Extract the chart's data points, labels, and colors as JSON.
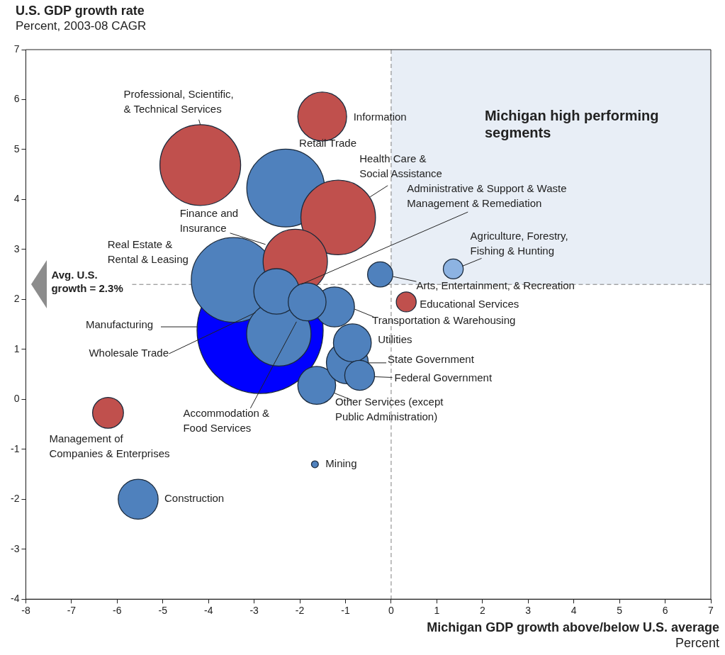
{
  "chart_data": {
    "type": "bubble",
    "title": "U.S. GDP growth rate",
    "subtitle": "Percent, 2003-08 CAGR",
    "xlabel": "Michigan GDP growth above/below U.S. average\nPercent",
    "xlim": [
      -8,
      7
    ],
    "xticks": [
      -8,
      -7,
      -6,
      -5,
      -4,
      -3,
      -2,
      -1,
      0,
      1,
      2,
      3,
      4,
      5,
      6,
      7
    ],
    "ylim": [
      -4,
      7
    ],
    "yticks": [
      -4,
      -3,
      -2,
      -1,
      0,
      1,
      2,
      3,
      4,
      5,
      6,
      7
    ],
    "grid": false,
    "ref_lines": [
      {
        "axis": "y",
        "value": 2.3,
        "label": "Avg. U.S. growth = 2.3%",
        "color": "#7f7f7f",
        "line_style": "dashed"
      },
      {
        "axis": "x",
        "value": 0,
        "color": "#7f7f7f",
        "line_style": "dashed"
      }
    ],
    "bands": [
      {
        "axis": "x",
        "from": 0,
        "to": 7,
        "label": "Michigan high performing segments",
        "color": "#e8eef6"
      }
    ],
    "series": [
      {
        "name": "Professional, Scientific, & Technical Services",
        "color": "#c0504d",
        "x": [
          -4.18
        ],
        "values": [
          4.69
        ],
        "sizes": [
          0.41
        ]
      },
      {
        "name": "Information",
        "color": "#c0504d",
        "x": [
          -1.51
        ],
        "values": [
          5.66
        ],
        "sizes": [
          0.15
        ]
      },
      {
        "name": "Retail Trade",
        "color": "#4f81bd",
        "x": [
          -2.31
        ],
        "values": [
          4.23
        ],
        "sizes": [
          0.38
        ]
      },
      {
        "name": "Health Care & Social Assistance",
        "color": "#c0504d",
        "x": [
          -1.16
        ],
        "values": [
          3.64
        ],
        "sizes": [
          0.35
        ]
      },
      {
        "name": "Manufacturing",
        "color": "#0000ff",
        "x": [
          -2.87
        ],
        "values": [
          1.38
        ],
        "sizes": [
          1
        ]
      },
      {
        "name": "Real Estate & Rental & Leasing",
        "color": "#4f81bd",
        "x": [
          -3.45
        ],
        "values": [
          2.39
        ],
        "sizes": [
          0.45
        ]
      },
      {
        "name": "Finance and Insurance",
        "color": "#c0504d",
        "x": [
          -2.1
        ],
        "values": [
          2.76
        ],
        "sizes": [
          0.26
        ]
      },
      {
        "name": "Wholesale Trade",
        "color": "#4f81bd",
        "x": [
          -2.46
        ],
        "values": [
          1.31
        ],
        "sizes": [
          0.26
        ]
      },
      {
        "name": "Administrative & Support & Waste Management & Remediation",
        "color": "#4f81bd",
        "x": [
          -2.51
        ],
        "values": [
          2.16
        ],
        "sizes": [
          0.13
        ]
      },
      {
        "name": "Transportation & Warehousing",
        "color": "#4f81bd",
        "x": [
          -1.24
        ],
        "values": [
          1.85
        ],
        "sizes": [
          0.1
        ]
      },
      {
        "name": "Accommodation & Food Services",
        "color": "#4f81bd",
        "x": [
          -1.84
        ],
        "values": [
          1.95
        ],
        "sizes": [
          0.09
        ]
      },
      {
        "name": "Arts, Entertainment, & Recreation",
        "color": "#4f81bd",
        "x": [
          -0.24
        ],
        "values": [
          2.5
        ],
        "sizes": [
          0.04
        ]
      },
      {
        "name": "Agriculture, Forestry, Fishing & Hunting",
        "color": "#8db3e2",
        "x": [
          1.36
        ],
        "values": [
          2.61
        ],
        "sizes": [
          0.025
        ]
      },
      {
        "name": "Educational Services",
        "color": "#c0504d",
        "x": [
          0.33
        ],
        "values": [
          1.95
        ],
        "sizes": [
          0.025
        ]
      },
      {
        "name": "Other Services (except Public Administration)",
        "color": "#4f81bd",
        "x": [
          -1.63
        ],
        "values": [
          0.28
        ],
        "sizes": [
          0.09
        ]
      },
      {
        "name": "State Government",
        "color": "#4f81bd",
        "x": [
          -0.96
        ],
        "values": [
          0.73
        ],
        "sizes": [
          0.11
        ]
      },
      {
        "name": "Utilities",
        "color": "#4f81bd",
        "x": [
          -0.85
        ],
        "values": [
          1.13
        ],
        "sizes": [
          0.09
        ]
      },
      {
        "name": "Federal Government",
        "color": "#4f81bd",
        "x": [
          -0.69
        ],
        "values": [
          0.48
        ],
        "sizes": [
          0.056
        ]
      },
      {
        "name": "Mining",
        "color": "#4f81bd",
        "x": [
          -1.67
        ],
        "values": [
          -1.3
        ],
        "sizes": [
          0.003
        ]
      },
      {
        "name": "Management of Companies & Enterprises",
        "color": "#c0504d",
        "x": [
          -6.2
        ],
        "values": [
          -0.27
        ],
        "sizes": [
          0.06
        ]
      },
      {
        "name": "Construction",
        "color": "#4f81bd",
        "x": [
          -5.54
        ],
        "values": [
          -2.0
        ],
        "sizes": [
          0.1
        ]
      }
    ]
  }
}
